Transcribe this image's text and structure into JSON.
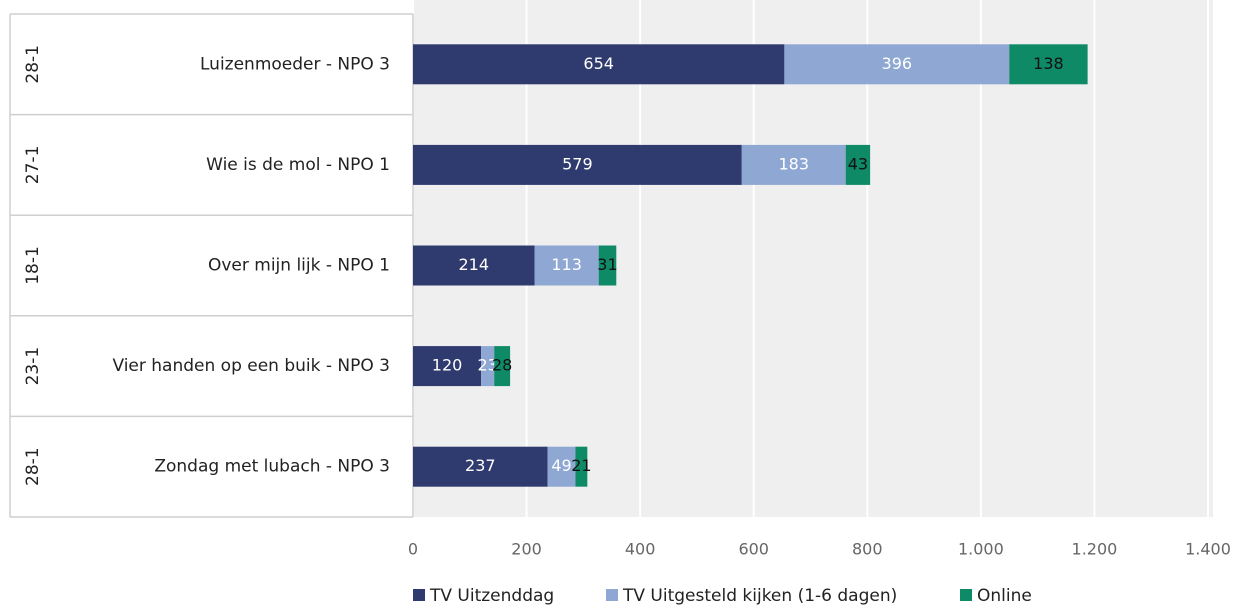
{
  "chart_data": {
    "type": "stacked-barh",
    "dates": [
      "28-1",
      "27-1",
      "18-1",
      "23-1",
      "28-1"
    ],
    "categories": [
      "Luizenmoeder - NPO 3",
      "Wie is de mol - NPO 1",
      "Over mijn lijk - NPO 1",
      "Vier handen op een buik - NPO 3",
      "Zondag met lubach - NPO 3"
    ],
    "series": [
      {
        "name": "TV Uitzenddag",
        "color": "#2f3b6f",
        "label_color": "#ffffff",
        "values": [
          654,
          579,
          214,
          120,
          237
        ]
      },
      {
        "name": "TV Uitgesteld kijken (1-6 dagen)",
        "color": "#8ea7d3",
        "label_color": "#ffffff",
        "values": [
          396,
          183,
          113,
          23,
          49
        ]
      },
      {
        "name": "Online",
        "color": "#0f8a67",
        "label_color": "#111111",
        "values": [
          138,
          43,
          31,
          28,
          21
        ]
      }
    ],
    "xlim": [
      0,
      1400
    ],
    "xticks": [
      0,
      200,
      400,
      600,
      800,
      {
        "value": 1000,
        "label": "1.000"
      },
      {
        "value": 1200,
        "label": "1.200"
      },
      {
        "value": 1400,
        "label": "1.400"
      }
    ],
    "grid": true,
    "legend": "bottom"
  }
}
